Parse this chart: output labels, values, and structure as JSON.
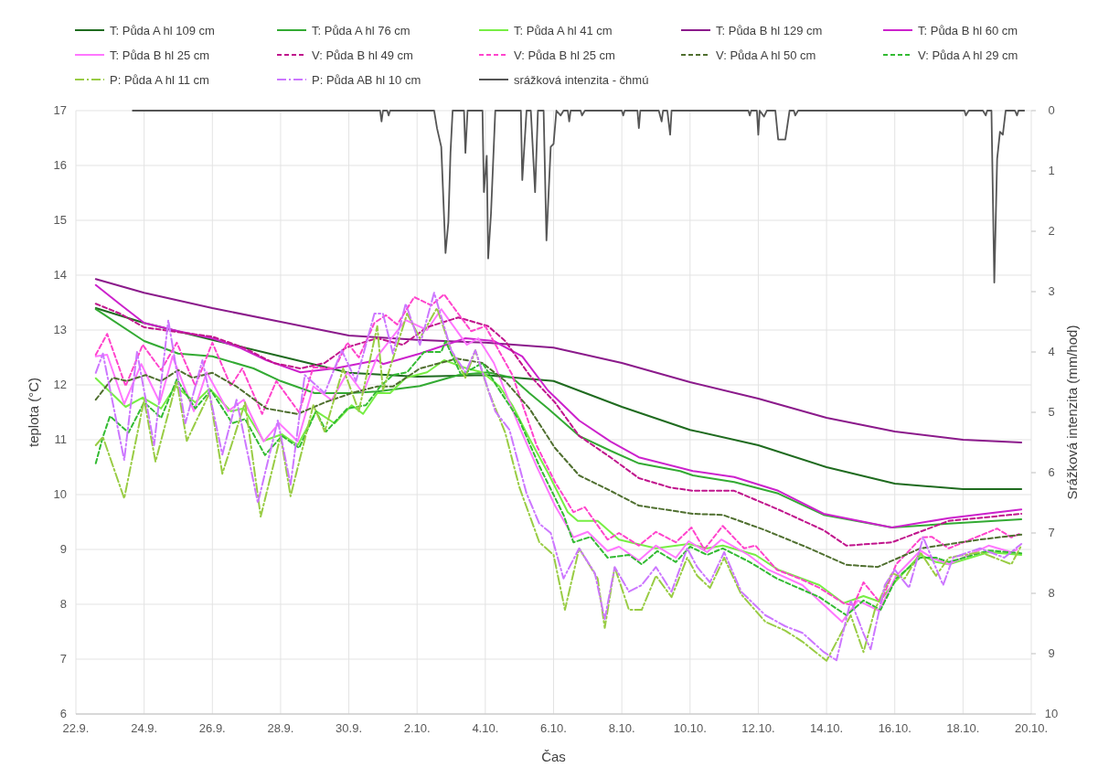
{
  "chart_data": {
    "type": "line",
    "xlabel": "Čas",
    "ylabel": "teplota (°C)",
    "y2label": "Srážková intenzita (mm/hod)",
    "xlim": [
      "--09-22",
      "--10-20"
    ],
    "xticks": [
      {
        "value": "--09-22",
        "label": "22.9."
      },
      {
        "value": "--09-24",
        "label": "24.9."
      },
      {
        "value": "--09-26",
        "label": "26.9."
      },
      {
        "value": "--09-28",
        "label": "28.9."
      },
      {
        "value": "--09-30",
        "label": "30.9."
      },
      {
        "value": "--10-02",
        "label": "2.10."
      },
      {
        "value": "--10-04",
        "label": "4.10."
      },
      {
        "value": "--10-06",
        "label": "6.10."
      },
      {
        "value": "--10-08",
        "label": "8.10."
      },
      {
        "value": "--10-10",
        "label": "10.10."
      },
      {
        "value": "--10-12",
        "label": "12.10."
      },
      {
        "value": "--10-14",
        "label": "14.10."
      },
      {
        "value": "--10-16",
        "label": "16.10."
      },
      {
        "value": "--10-18",
        "label": "18.10."
      },
      {
        "value": "--10-20",
        "label": "20.10."
      }
    ],
    "ylim": [
      6,
      17
    ],
    "yticks": [
      6,
      7,
      8,
      9,
      10,
      11,
      12,
      13,
      14,
      15,
      16,
      17
    ],
    "y2lim": [
      10,
      0
    ],
    "y2ticks": [
      0,
      1,
      2,
      3,
      4,
      5,
      6,
      7,
      8,
      9,
      10
    ],
    "grid": true,
    "legend": "top",
    "marker": "none",
    "series": [
      {
        "name": "T: Půda A hl 109 cm",
        "color": "#1f6b1f",
        "line_style": "solid",
        "x": [
          "--09-22T14:00",
          "--09-24T00:00",
          "--09-26T00:00",
          "--09-28T00:00",
          "--09-30T00:00",
          "--10-02T00:00",
          "--10-04T00:00",
          "--10-06T00:00",
          "--10-08T00:00",
          "--10-10T00:00",
          "--10-12T00:00",
          "--10-14T00:00",
          "--10-16T00:00",
          "--10-18T00:00",
          "--10-19T17:00"
        ],
        "values": [
          13.4,
          13.13,
          12.82,
          12.52,
          12.22,
          12.15,
          12.18,
          12.07,
          11.6,
          11.18,
          10.9,
          10.5,
          10.2,
          10.1,
          10.1
        ]
      },
      {
        "name": "T: Půda A hl 76 cm",
        "color": "#33aa33",
        "line_style": "solid",
        "x": [
          "--09-22T14:00",
          "--09-24T00:00",
          "--09-25T00:00",
          "--09-26T00:00",
          "--09-27T05:00",
          "--09-28T00:00",
          "--09-29T00:00",
          "--09-30T00:00",
          "--09-30T20:00",
          "--10-02T02:00",
          "--10-03T05:00",
          "--10-04T02:00",
          "--10-04T19:00",
          "--10-05T07:00",
          "--10-05T20:00",
          "--10-06T18:00",
          "--10-07T16:00",
          "--10-08T12:00",
          "--10-09T17:00",
          "--10-10T02:00",
          "--10-11T07:00",
          "--10-12T14:00",
          "--10-13T22:00",
          "--10-15T22:00",
          "--10-17T14:00",
          "--10-19T17:00"
        ],
        "values": [
          13.38,
          12.8,
          12.57,
          12.52,
          12.3,
          12.07,
          11.85,
          11.85,
          11.88,
          11.98,
          12.18,
          12.23,
          12.13,
          11.85,
          11.57,
          11.07,
          10.8,
          10.57,
          10.43,
          10.35,
          10.23,
          10.02,
          9.63,
          9.4,
          9.47,
          9.55
        ]
      },
      {
        "name": "T: Půda A hl 41 cm",
        "color": "#77ee44",
        "line_style": "solid",
        "x": [
          "--09-22T14:00",
          "--09-23T11:00",
          "--09-23T23:00",
          "--09-24T12:00",
          "--09-24T22:00",
          "--09-25T12:00",
          "--09-25T22:00",
          "--09-26T13:00",
          "--09-26T22:00",
          "--09-27T12:00",
          "--09-28T01:00",
          "--09-28T12:00",
          "--09-29T01:00",
          "--09-29T14:00",
          "--09-30T02:00",
          "--09-30T10:00",
          "--09-30T20:00",
          "--10-01T05:00",
          "--10-01T16:00",
          "--10-02T07:00",
          "--10-02T19:00",
          "--10-03T11:00",
          "--10-03T22:00",
          "--10-04T10:00",
          "--10-04T19:00",
          "--10-05T07:00",
          "--10-05T20:00",
          "--10-06T10:00",
          "--10-06T17:00",
          "--10-07T07:00",
          "--10-07T22:00",
          "--10-09T00:00",
          "--10-09T23:00",
          "--10-10T12:00",
          "--10-10T23:00",
          "--10-11T22:00",
          "--10-12T14:00",
          "--10-13T19:00",
          "--10-14T12:00",
          "--10-15T02:00",
          "--10-15T13:00",
          "--10-16T01:00",
          "--10-16T18:00",
          "--10-17T05:00",
          "--10-17T14:00",
          "--10-18T18:00",
          "--10-19T17:00"
        ],
        "values": [
          12.12,
          11.6,
          11.77,
          11.57,
          11.98,
          11.68,
          11.93,
          11.52,
          11.57,
          10.98,
          11.1,
          10.9,
          11.52,
          11.3,
          11.63,
          11.47,
          11.85,
          11.85,
          12.13,
          12.23,
          12.45,
          12.3,
          12.23,
          11.97,
          11.63,
          11.02,
          10.4,
          9.68,
          9.52,
          9.52,
          9.18,
          9.02,
          9.1,
          9.02,
          9.07,
          8.9,
          8.63,
          8.35,
          8.02,
          8.15,
          8.05,
          8.43,
          8.9,
          8.77,
          8.73,
          8.95,
          8.9
        ]
      },
      {
        "name": "T: Půda B hl 129 cm",
        "color": "#8b1a8b",
        "line_style": "solid",
        "x": [
          "--09-22T14:00",
          "--09-24T00:00",
          "--09-26T00:00",
          "--09-28T00:00",
          "--09-30T00:00",
          "--10-02T00:00",
          "--10-04T00:00",
          "--10-06T00:00",
          "--10-08T00:00",
          "--10-10T00:00",
          "--10-12T00:00",
          "--10-14T00:00",
          "--10-16T00:00",
          "--10-18T00:00",
          "--10-19T17:00"
        ],
        "values": [
          13.93,
          13.68,
          13.4,
          13.15,
          12.9,
          12.82,
          12.77,
          12.68,
          12.4,
          12.05,
          11.75,
          11.4,
          11.15,
          11.0,
          10.95
        ]
      },
      {
        "name": "T: Půda B hl 60 cm",
        "color": "#cc22cc",
        "line_style": "solid",
        "x": [
          "--09-22T14:00",
          "--09-23T07:00",
          "--09-24T00:00",
          "--09-25T00:00",
          "--09-26T00:00",
          "--09-26T19:00",
          "--09-27T14:00",
          "--09-28T14:00",
          "--09-29T14:00",
          "--09-30T20:00",
          "--10-01T00:00",
          "--10-02T02:00",
          "--10-03T10:00",
          "--10-04T06:00",
          "--10-05T02:00",
          "--10-05T20:00",
          "--10-06T18:00",
          "--10-07T16:00",
          "--10-08T12:00",
          "--10-10T02:00",
          "--10-11T07:00",
          "--10-12T14:00",
          "--10-13T22:00",
          "--10-15T22:00",
          "--10-17T14:00",
          "--10-19T17:00"
        ],
        "values": [
          13.82,
          13.47,
          13.13,
          12.98,
          12.85,
          12.68,
          12.45,
          12.23,
          12.3,
          12.45,
          12.38,
          12.57,
          12.85,
          12.8,
          12.52,
          11.9,
          11.35,
          10.97,
          10.68,
          10.43,
          10.32,
          10.07,
          9.65,
          9.4,
          9.57,
          9.73
        ]
      },
      {
        "name": "T: Půda B hl 25 cm",
        "color": "#ff77ff",
        "line_style": "solid",
        "x": [
          "--09-22T14:00",
          "--09-22T22:00",
          "--09-23T10:00",
          "--09-23T22:00",
          "--09-24T11:00",
          "--09-24T20:00",
          "--09-25T11:00",
          "--09-25T20:00",
          "--09-26T11:00",
          "--09-26T22:00",
          "--09-27T12:00",
          "--09-27T23:00",
          "--09-28T12:00",
          "--09-28T23:00",
          "--09-29T12:00",
          "--09-29T23:00",
          "--09-30T10:00",
          "--09-30T20:00",
          "--10-01T16:00",
          "--10-02T07:00",
          "--10-02T17:00",
          "--10-03T11:00",
          "--10-03T19:00",
          "--10-04T06:00",
          "--10-05T00:00",
          "--10-05T12:00",
          "--10-06T01:00",
          "--10-06T14:00",
          "--10-07T00:00",
          "--10-07T14:00",
          "--10-07T22:00",
          "--10-08T12:00",
          "--10-09T00:00",
          "--10-09T14:00",
          "--10-09T23:00",
          "--10-10T12:00",
          "--10-10T22:00",
          "--10-11T17:00",
          "--10-12T07:00",
          "--10-13T07:00",
          "--10-14T11:00",
          "--10-14T22:00",
          "--10-15T13:00",
          "--10-16T01:00",
          "--10-16T18:00",
          "--10-17T02:00",
          "--10-17T14:00",
          "--10-18T18:00",
          "--10-19T10:00",
          "--10-19T14:00"
        ],
        "values": [
          12.52,
          12.55,
          11.65,
          12.38,
          11.68,
          12.52,
          11.52,
          12.23,
          11.52,
          11.73,
          10.97,
          11.3,
          10.97,
          11.97,
          11.72,
          12.23,
          11.85,
          12.52,
          13.18,
          13.0,
          13.38,
          12.73,
          12.85,
          12.4,
          11.23,
          10.52,
          9.8,
          9.22,
          9.32,
          8.97,
          9.05,
          8.8,
          9.07,
          8.85,
          9.15,
          8.95,
          9.18,
          8.9,
          8.63,
          8.35,
          7.68,
          8.07,
          7.88,
          8.52,
          8.98,
          8.85,
          8.73,
          9.07,
          8.95,
          9.0
        ]
      },
      {
        "name": "V: Půda B hl 49 cm",
        "color": "#c0148c",
        "line_style": "dashed",
        "x": [
          "--09-22T14:00",
          "--09-23T07:00",
          "--09-24T00:00",
          "--09-24T19:00",
          "--09-26T00:00",
          "--09-26T22:00",
          "--09-27T19:00",
          "--09-28T14:00",
          "--09-29T07:00",
          "--09-29T22:00",
          "--09-30T20:00",
          "--10-01T14:00",
          "--10-02T07:00",
          "--10-03T05:00",
          "--10-04T02:00",
          "--10-04T14:00",
          "--10-05T07:00",
          "--10-06T01:00",
          "--10-06T18:00",
          "--10-07T16:00",
          "--10-08T12:00",
          "--10-09T10:00",
          "--10-10T02:00",
          "--10-11T07:00",
          "--10-12T14:00",
          "--10-13T22:00",
          "--10-14T14:00",
          "--10-15T22:00",
          "--10-17T14:00",
          "--10-19T17:00"
        ],
        "values": [
          13.48,
          13.3,
          13.05,
          12.98,
          12.88,
          12.68,
          12.4,
          12.3,
          12.4,
          12.68,
          12.85,
          12.73,
          13.05,
          13.23,
          13.07,
          12.8,
          12.18,
          11.68,
          11.07,
          10.68,
          10.3,
          10.13,
          10.07,
          10.07,
          9.73,
          9.35,
          9.07,
          9.13,
          9.52,
          9.65
        ]
      },
      {
        "name": "V: Půda B hl 25 cm",
        "color": "#ff44cc",
        "line_style": "dashed",
        "x": [
          "--09-22T14:00",
          "--09-22T22:00",
          "--09-23T11:00",
          "--09-23T23:00",
          "--09-24T12:00",
          "--09-24T23:00",
          "--09-25T12:00",
          "--09-26T00:00",
          "--09-26T13:00",
          "--09-26T21:00",
          "--09-27T11:00",
          "--09-27T21:00",
          "--09-28T13:00",
          "--09-28T23:00",
          "--09-29T14:00",
          "--09-29T23:00",
          "--09-30T07:00",
          "--09-30T18:00",
          "--10-01T02:00",
          "--10-01T10:00",
          "--10-01T22:00",
          "--10-02T10:00",
          "--10-02T19:00",
          "--10-03T14:00",
          "--10-04T00:00",
          "--10-04T19:00",
          "--10-05T12:00",
          "--10-06T01:00",
          "--10-06T14:00",
          "--10-06T22:00",
          "--10-07T14:00",
          "--10-07T22:00",
          "--10-08T12:00",
          "--10-09T00:00",
          "--10-09T14:00",
          "--10-10T01:00",
          "--10-10T10:00",
          "--10-10T23:00",
          "--10-11T14:00",
          "--10-11T22:00",
          "--10-12T13:00",
          "--10-13T05:00",
          "--10-13T19:00",
          "--10-14T12:00",
          "--10-14T19:00",
          "--10-15T02:00",
          "--10-15T14:00",
          "--10-16T01:00",
          "--10-16T19:00",
          "--10-17T02:00",
          "--10-17T14:00",
          "--10-19T00:00",
          "--10-19T10:00",
          "--10-19T17:00"
        ],
        "values": [
          12.55,
          12.93,
          11.98,
          12.73,
          12.27,
          12.77,
          11.98,
          12.77,
          11.98,
          12.3,
          11.47,
          12.07,
          11.5,
          12.32,
          12.3,
          12.77,
          12.5,
          13.13,
          13.27,
          13.1,
          13.6,
          13.45,
          13.65,
          12.98,
          13.07,
          12.18,
          10.9,
          10.23,
          9.68,
          9.77,
          9.18,
          9.3,
          9.07,
          9.32,
          9.13,
          9.4,
          9.0,
          9.43,
          9.02,
          9.07,
          8.63,
          8.47,
          8.3,
          8.02,
          7.98,
          8.4,
          8.02,
          8.73,
          9.22,
          9.23,
          9.02,
          9.38,
          9.22,
          9.3
        ]
      },
      {
        "name": "V: Půda A hl 50 cm",
        "color": "#4f6f2f",
        "line_style": "dashed",
        "x": [
          "--09-22T14:00",
          "--09-23T02:00",
          "--09-23T12:00",
          "--09-24T01:00",
          "--09-24T12:00",
          "--09-25T00:00",
          "--09-25T10:00",
          "--09-26T00:00",
          "--09-26T17:00",
          "--09-27T14:00",
          "--09-28T12:00",
          "--09-29T07:00",
          "--09-30T02:00",
          "--09-30T20:00",
          "--10-01T07:00",
          "--10-02T02:00",
          "--10-03T04:00",
          "--10-03T22:00",
          "--10-04T14:00",
          "--10-05T07:00",
          "--10-06T01:00",
          "--10-06T18:00",
          "--10-07T16:00",
          "--10-08T12:00",
          "--10-10T02:00",
          "--10-10T23:00",
          "--10-12T05:00",
          "--10-13T12:00",
          "--10-14T14:00",
          "--10-15T12:00",
          "--10-16T18:00",
          "--10-18T12:00",
          "--10-19T17:00"
        ],
        "values": [
          11.73,
          12.13,
          12.07,
          12.18,
          12.07,
          12.27,
          12.13,
          12.22,
          11.97,
          11.57,
          11.47,
          11.68,
          11.85,
          11.97,
          11.97,
          12.3,
          12.48,
          12.4,
          12.07,
          11.57,
          10.85,
          10.35,
          10.07,
          9.8,
          9.65,
          9.63,
          9.35,
          9.02,
          8.72,
          8.68,
          9.02,
          9.18,
          9.27
        ]
      },
      {
        "name": "V: Půda A hl 29 cm",
        "color": "#33bb33",
        "line_style": "dashed",
        "x": [
          "--09-22T14:00",
          "--09-22T19:00",
          "--09-23T00:00",
          "--09-23T13:00",
          "--09-24T00:00",
          "--09-24T12:00",
          "--09-24T23:00",
          "--09-25T12:00",
          "--09-25T23:00",
          "--09-26T14:00",
          "--09-26T23:00",
          "--09-27T13:00",
          "--09-28T01:00",
          "--09-28T13:00",
          "--09-29T01:00",
          "--09-29T08:00",
          "--09-29T23:00",
          "--09-30T12:00",
          "--09-30T22:00",
          "--10-01T07:00",
          "--10-01T17:00",
          "--10-02T05:00",
          "--10-02T17:00",
          "--10-02T20:00",
          "--10-03T07:00",
          "--10-03T22:00",
          "--10-04T10:00",
          "--10-05T00:00",
          "--10-05T14:00",
          "--10-06T07:00",
          "--10-06T14:00",
          "--10-07T02:00",
          "--10-07T14:00",
          "--10-08T05:00",
          "--10-08T14:00",
          "--10-09T01:00",
          "--10-09T14:00",
          "--10-10T00:00",
          "--10-10T12:00",
          "--10-10T23:00",
          "--10-11T18:00",
          "--10-12T13:00",
          "--10-13T19:00",
          "--10-14T14:00",
          "--10-15T02:00",
          "--10-15T14:00",
          "--10-16T01:00",
          "--10-16T18:00",
          "--10-17T05:00",
          "--10-17T14:00",
          "--10-18T18:00",
          "--10-19T17:00"
        ],
        "values": [
          10.57,
          11.05,
          11.43,
          11.13,
          11.68,
          11.4,
          12.1,
          11.57,
          11.9,
          11.3,
          11.38,
          10.72,
          11.07,
          10.85,
          11.52,
          11.15,
          11.57,
          11.63,
          11.97,
          12.18,
          12.23,
          12.6,
          12.6,
          12.8,
          12.18,
          12.4,
          11.9,
          11.35,
          10.52,
          9.63,
          9.13,
          9.23,
          8.85,
          8.9,
          8.73,
          8.97,
          8.77,
          9.05,
          8.9,
          9.02,
          8.77,
          8.47,
          8.13,
          7.8,
          8.07,
          7.9,
          8.47,
          8.85,
          8.85,
          8.77,
          8.98,
          8.93
        ]
      },
      {
        "name": "P: Půda A hl 11 cm",
        "color": "#99cc44",
        "line_style": "dashdot",
        "x": [
          "--09-22T14:00",
          "--09-22T19:00",
          "--09-23T10:00",
          "--09-24T00:00",
          "--09-24T08:00",
          "--09-24T23:00",
          "--09-25T06:00",
          "--09-25T22:00",
          "--09-26T07:00",
          "--09-26T23:00",
          "--09-27T10:00",
          "--09-28T00:00",
          "--09-28T07:00",
          "--09-28T23:00",
          "--09-29T07:00",
          "--09-29T20:00",
          "--09-30T07:00",
          "--09-30T20:00",
          "--10-01T00:00",
          "--10-01T17:00",
          "--10-02T02:00",
          "--10-02T14:00",
          "--10-03T00:00",
          "--10-03T10:00",
          "--10-03T17:00",
          "--10-04T02:00",
          "--10-04T14:00",
          "--10-05T00:00",
          "--10-05T14:00",
          "--10-06T00:00",
          "--10-06T08:00",
          "--10-06T18:00",
          "--10-07T07:00",
          "--10-07T12:00",
          "--10-07T19:00",
          "--10-08T05:00",
          "--10-08T14:00",
          "--10-09T00:00",
          "--10-09T11:00",
          "--10-09T22:00",
          "--10-10T05:00",
          "--10-10T14:00",
          "--10-11T00:00",
          "--10-11T12:00",
          "--10-12T05:00",
          "--10-12T19:00",
          "--10-13T07:00",
          "--10-14T00:00",
          "--10-14T17:00",
          "--10-15T02:00",
          "--10-15T10:00",
          "--10-15T22:00",
          "--10-16T07:00",
          "--10-16T18:00",
          "--10-17T05:00",
          "--10-17T14:00",
          "--10-18T12:00",
          "--10-19T10:00",
          "--10-19T17:00"
        ],
        "values": [
          10.9,
          11.05,
          9.93,
          11.73,
          10.6,
          12.07,
          10.98,
          11.85,
          10.38,
          11.68,
          9.6,
          11.07,
          9.97,
          11.63,
          11.15,
          12.3,
          11.52,
          13.07,
          11.9,
          13.3,
          12.85,
          13.4,
          12.63,
          12.13,
          12.63,
          11.9,
          11.13,
          10.13,
          9.13,
          8.9,
          7.9,
          9.02,
          8.47,
          7.57,
          8.68,
          7.9,
          7.9,
          8.52,
          8.13,
          8.85,
          8.52,
          8.3,
          8.85,
          8.18,
          7.68,
          7.52,
          7.32,
          6.97,
          7.8,
          7.13,
          7.9,
          8.57,
          8.47,
          8.95,
          8.52,
          8.85,
          8.95,
          8.73,
          9.07
        ]
      },
      {
        "name": "P: Půda AB hl 10 cm",
        "color": "#cc77ff",
        "line_style": "dashdot",
        "x": [
          "--09-22T14:00",
          "--09-22T19:00",
          "--09-23T10:00",
          "--09-23T19:00",
          "--09-24T07:00",
          "--09-24T17:00",
          "--09-25T05:00",
          "--09-25T17:00",
          "--09-26T07:00",
          "--09-26T17:00",
          "--09-27T08:00",
          "--09-27T22:00",
          "--09-28T07:00",
          "--09-28T17:00",
          "--09-29T07:00",
          "--09-29T19:00",
          "--09-30T05:00",
          "--09-30T18:00",
          "--10-01T00:00",
          "--10-01T07:00",
          "--10-01T16:00",
          "--10-02T02:00",
          "--10-02T12:00",
          "--10-03T00:00",
          "--10-03T10:00",
          "--10-03T17:00",
          "--10-04T07:00",
          "--10-04T17:00",
          "--10-05T05:00",
          "--10-05T14:00",
          "--10-05T22:00",
          "--10-06T07:00",
          "--10-06T18:00",
          "--10-07T05:00",
          "--10-07T12:00",
          "--10-07T19:00",
          "--10-08T05:00",
          "--10-08T14:00",
          "--10-09T00:00",
          "--10-09T11:00",
          "--10-09T22:00",
          "--10-10T05:00",
          "--10-10T14:00",
          "--10-11T00:00",
          "--10-11T12:00",
          "--10-12T05:00",
          "--10-12T19:00",
          "--10-13T07:00",
          "--10-13T22:00",
          "--10-14T07:00",
          "--10-14T17:00",
          "--10-15T02:00",
          "--10-15T07:00",
          "--10-15T17:00",
          "--10-16T00:00",
          "--10-16T10:00",
          "--10-16T20:00",
          "--10-17T10:00",
          "--10-17T17:00",
          "--10-18T12:00",
          "--10-19T05:00",
          "--10-19T17:00"
        ],
        "values": [
          12.22,
          12.57,
          10.63,
          12.6,
          10.9,
          13.18,
          11.3,
          12.45,
          10.73,
          11.73,
          9.85,
          11.35,
          10.18,
          12.18,
          11.85,
          12.63,
          12.07,
          13.3,
          13.3,
          12.57,
          13.48,
          12.73,
          13.68,
          12.63,
          12.23,
          12.63,
          11.52,
          11.18,
          10.02,
          9.47,
          9.3,
          8.47,
          9.02,
          8.57,
          7.73,
          8.68,
          8.23,
          8.35,
          8.68,
          8.23,
          9.02,
          8.68,
          8.4,
          8.95,
          8.23,
          7.8,
          7.6,
          7.48,
          7.13,
          6.98,
          8.07,
          7.47,
          7.18,
          8.35,
          8.63,
          8.3,
          9.22,
          8.35,
          8.85,
          9.02,
          8.85,
          9.1
        ]
      },
      {
        "name": "srážková intenzita - čhmú",
        "color": "#555555",
        "line_style": "solid",
        "axis": "y2",
        "x": [
          "--09-23T16:00",
          "--09-30T22:00",
          "--09-30T23:00",
          "--10-01T00:00",
          "--10-01T03:00",
          "--10-01T04:00",
          "--10-01T05:00",
          "--10-02T12:00",
          "--10-02T14:00",
          "--10-02T17:00",
          "--10-02T20:00",
          "--10-02T22:00",
          "--10-02T23:30",
          "--10-03T01:00",
          "--10-03T09:00",
          "--10-03T10:00",
          "--10-03T11:30",
          "--10-03T22:00",
          "--10-03T23:00",
          "--10-04T01:00",
          "--10-04T02:00",
          "--10-04T04:00",
          "--10-04T07:00",
          "--10-05T01:00",
          "--10-05T02:00",
          "--10-05T05:00",
          "--10-05T08:00",
          "--10-05T11:00",
          "--10-05T13:00",
          "--10-05T17:00",
          "--10-05T19:00",
          "--10-05T22:00",
          "--10-06T00:00",
          "--10-06T02:00",
          "--10-06T05:00",
          "--10-06T07:00",
          "--10-06T10:00",
          "--10-06T11:00",
          "--10-06T12:00",
          "--10-06T19:00",
          "--10-06T20:00",
          "--10-06T22:00",
          "--10-08T00:00",
          "--10-08T01:00",
          "--10-08T02:00",
          "--10-08T11:00",
          "--10-08T12:00",
          "--10-08T13:00",
          "--10-09T02:00",
          "--10-09T04:00",
          "--10-09T05:00",
          "--10-09T08:00",
          "--10-09T10:00",
          "--10-09T11:00",
          "--10-11T17:00",
          "--10-11T18:00",
          "--10-11T19:00",
          "--10-11T23:00",
          "--10-12T00:00",
          "--10-12T01:00",
          "--10-12T04:00",
          "--10-12T06:00",
          "--10-12T12:00",
          "--10-12T14:00",
          "--10-12T19:00",
          "--10-12T22:00",
          "--10-13T01:00",
          "--10-13T02:00",
          "--10-13T04:00",
          "--10-18T01:00",
          "--10-18T02:00",
          "--10-18T04:00",
          "--10-18T14:00",
          "--10-18T16:00",
          "--10-18T17:00",
          "--10-18T20:00",
          "--10-18T22:00",
          "--10-19T00:00",
          "--10-19T02:00",
          "--10-19T04:00",
          "--10-19T06:00",
          "--10-19T12:30",
          "--10-19T14:00",
          "--10-19T15:00",
          "--10-19T19:00"
        ],
        "values": [
          0,
          0,
          0.18,
          0,
          0,
          0.08,
          0,
          0,
          0.29,
          0.6,
          2.36,
          1.85,
          0.7,
          0,
          0,
          0.7,
          0,
          0,
          1.35,
          0.75,
          2.45,
          1.7,
          0,
          0,
          1.15,
          0,
          0,
          1.35,
          0,
          0,
          2.15,
          0.6,
          0.55,
          0,
          0.08,
          0,
          0,
          0.18,
          0,
          0,
          0.08,
          0,
          0,
          0.08,
          0,
          0,
          0.29,
          0,
          0,
          0.18,
          0,
          0,
          0.4,
          0,
          0,
          0.08,
          0,
          0,
          0.4,
          0,
          0.1,
          0,
          0,
          0.48,
          0.48,
          0,
          0,
          0.08,
          0,
          0,
          0.08,
          0,
          0,
          0.08,
          0,
          0,
          2.85,
          0.8,
          0.35,
          0.4,
          0,
          0,
          0.08,
          0,
          0
        ]
      }
    ]
  }
}
